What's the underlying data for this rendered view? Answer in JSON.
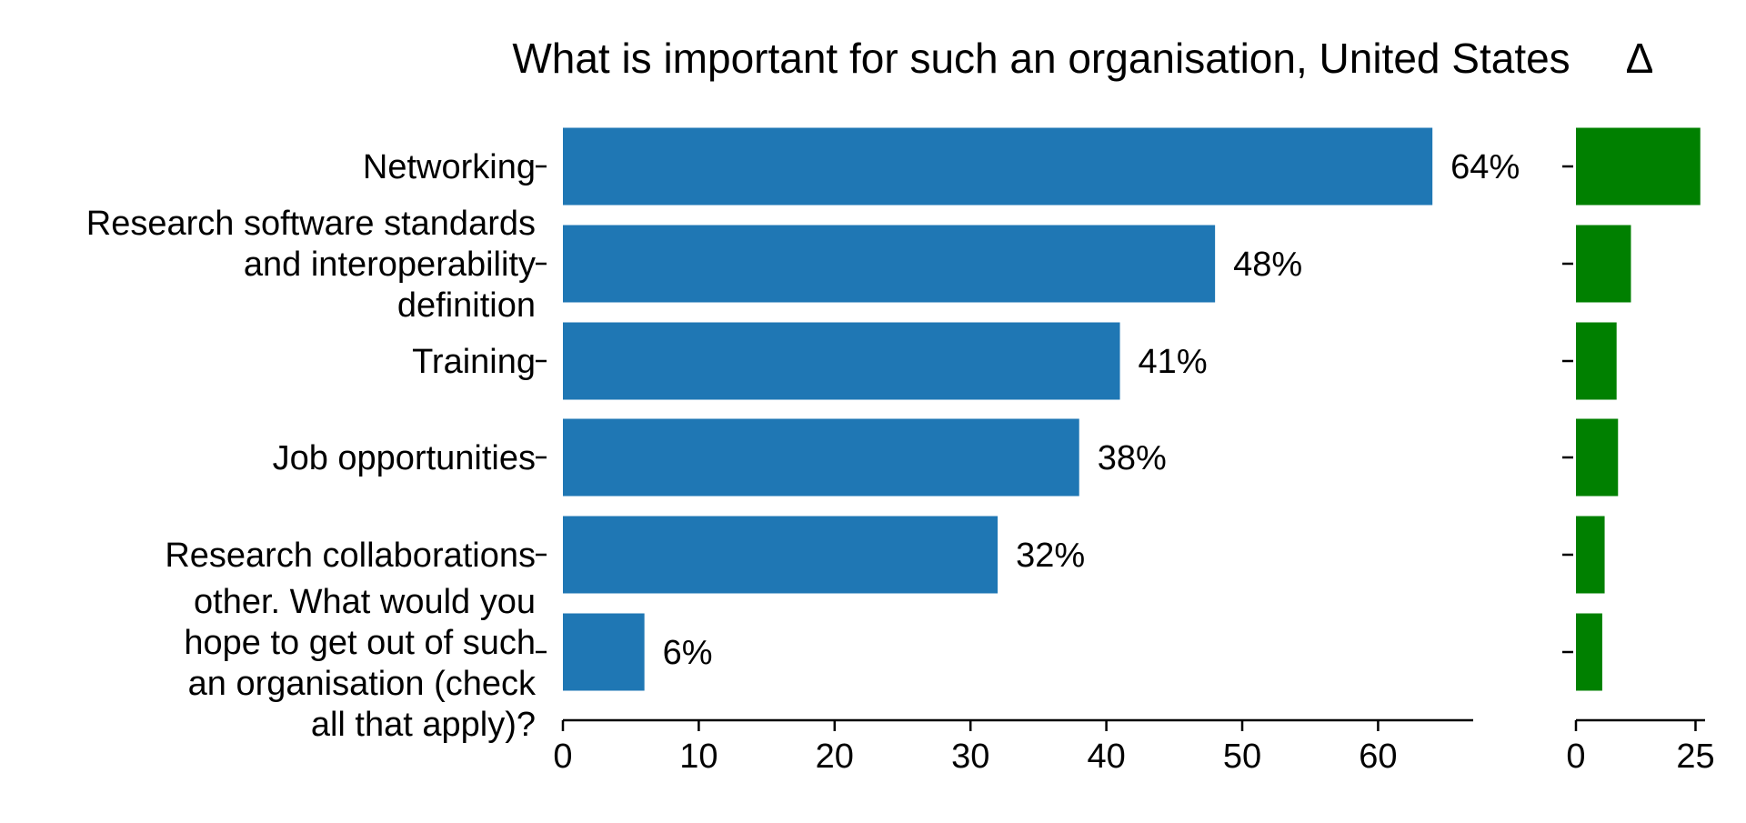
{
  "chart_data": {
    "type": "bar",
    "orientation": "horizontal",
    "title": "What is important for such an organisation, United States",
    "delta_title": "Δ",
    "categories": [
      "Networking",
      "Research software standards and interoperability definition",
      "Training",
      "Job opportunities",
      "Research collaborations",
      "other. What would you hope to get out of such an organisation (check all that apply)?"
    ],
    "category_label_lines": [
      [
        "Networking"
      ],
      [
        "Research software standards",
        "and interoperability",
        "definition"
      ],
      [
        "Training"
      ],
      [
        "Job opportunities"
      ],
      [
        "Research collaborations"
      ],
      [
        "other. What would you",
        "hope to get out of such",
        "an organisation (check",
        "all that apply)?"
      ]
    ],
    "values": [
      64,
      48,
      41,
      38,
      32,
      6
    ],
    "value_labels": [
      "64%",
      "48%",
      "41%",
      "38%",
      "32%",
      "6%"
    ],
    "xlim": [
      0,
      67
    ],
    "xticks": [
      "0",
      "10",
      "20",
      "30",
      "40",
      "50",
      "60"
    ],
    "delta_values": [
      26,
      11.5,
      8.5,
      8.8,
      6,
      5.5
    ],
    "delta_xlim": [
      0,
      27
    ],
    "delta_xticks": [
      "0",
      "25"
    ],
    "colors": {
      "main_bar": "#1f77b4",
      "delta_bar": "#008000",
      "axis": "#000000"
    },
    "grid": false,
    "legend": "none"
  }
}
